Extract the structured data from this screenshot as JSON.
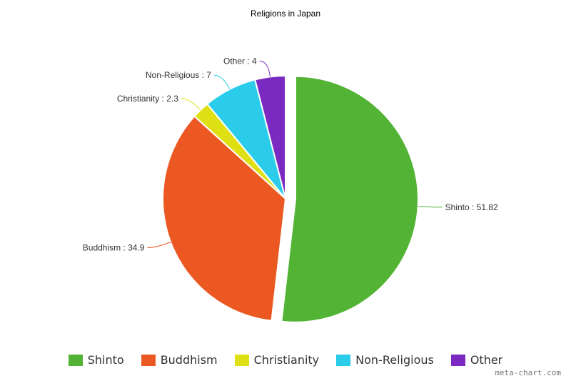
{
  "chart_data": {
    "type": "pie",
    "title": "Religions in Japan",
    "categories": [
      "Shinto",
      "Buddhism",
      "Christianity",
      "Non-Religious",
      "Other"
    ],
    "values": [
      51.82,
      34.9,
      2.3,
      7,
      4
    ],
    "value_labels": [
      "51.82",
      "34.9",
      "2.3",
      "7",
      "4"
    ],
    "colors": [
      "#52b335",
      "#eb5821",
      "#dfe014",
      "#2accea",
      "#7a2ac1"
    ],
    "exploded": "Shinto",
    "legend_position": "bottom"
  },
  "watermark": "meta-chart.com"
}
